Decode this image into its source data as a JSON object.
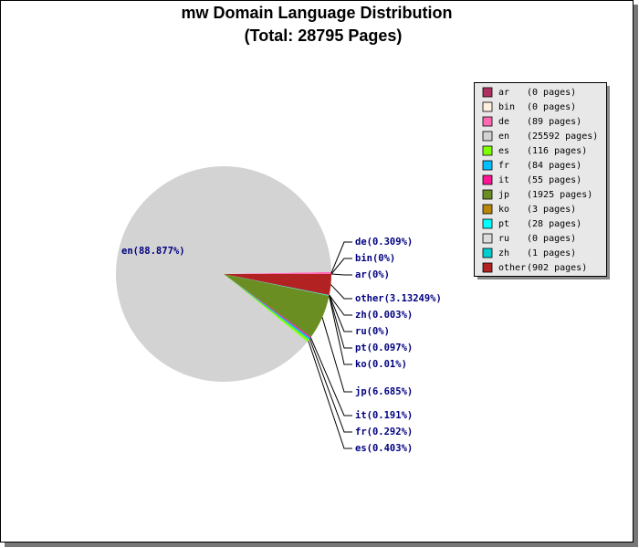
{
  "chart_data": {
    "type": "pie",
    "title": "mw Domain Language Distribution",
    "subtitle": "(Total: 28795 Pages)",
    "categories": [
      "ar",
      "bin",
      "de",
      "en",
      "es",
      "fr",
      "it",
      "jp",
      "ko",
      "pt",
      "ru",
      "zh",
      "other"
    ],
    "values": [
      0,
      0,
      0.309,
      88.877,
      0.403,
      0.292,
      0.191,
      6.685,
      0.01,
      0.097,
      0,
      0.003,
      3.13249
    ],
    "value_labels": [
      "ar(0%)",
      "bin(0%)",
      "de(0.309%)",
      "en(88.877%)",
      "es(0.403%)",
      "fr(0.292%)",
      "it(0.191%)",
      "jp(6.685%)",
      "ko(0.01%)",
      "pt(0.097%)",
      "ru(0%)",
      "zh(0.003%)",
      "other(3.13249%)"
    ],
    "pages": [
      0,
      0,
      89,
      25592,
      116,
      84,
      55,
      1925,
      3,
      28,
      0,
      1,
      902
    ],
    "pages_labels": [
      "(0 pages)",
      "(0 pages)",
      "(89 pages)",
      "(25592 pages)",
      "(116 pages)",
      "(84 pages)",
      "(55 pages)",
      "(1925 pages)",
      "(3 pages)",
      "(28 pages)",
      "(0 pages)",
      "(1 pages)",
      "(902 pages)"
    ],
    "colors": [
      "#b03060",
      "#fff0e0",
      "#ff69b4",
      "#d3d3d3",
      "#7fff00",
      "#00bfff",
      "#ff1493",
      "#6b8e23",
      "#b8860b",
      "#00ffff",
      "#dcdcdc",
      "#00ced1",
      "#b22222"
    ],
    "legend": "top-right"
  }
}
